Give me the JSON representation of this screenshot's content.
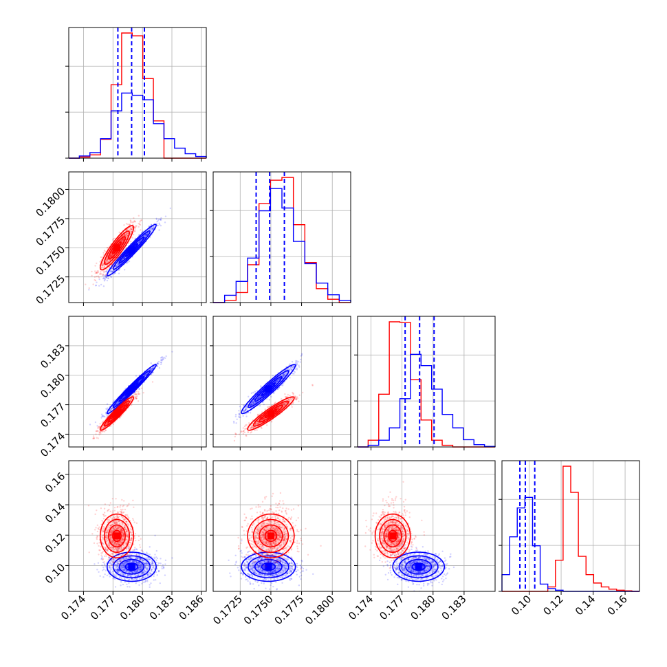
{
  "chart_data": {
    "type": "corner",
    "description_labels": "No titles or axis labels printed; only tick labels.",
    "colors": {
      "red": "#ff0000",
      "blue": "#0000ff",
      "grid": "#b0b0b0"
    },
    "grid": true,
    "params": [
      {
        "range": [
          0.1725,
          0.1865
        ],
        "ticks": [
          "0.174",
          "0.177",
          "0.180",
          "0.183",
          "0.186"
        ],
        "tick_values": [
          0.174,
          0.177,
          0.18,
          0.183,
          0.186
        ]
      },
      {
        "range": [
          0.1703,
          0.1815
        ],
        "ticks": [
          "0.1725",
          "0.1750",
          "0.1775",
          "0.1800"
        ],
        "tick_values": [
          0.1725,
          0.175,
          0.1775,
          0.18
        ]
      },
      {
        "range": [
          0.1727,
          0.186
        ],
        "ticks": [
          "0.174",
          "0.177",
          "0.180",
          "0.183"
        ],
        "tick_values": [
          0.174,
          0.177,
          0.18,
          0.183
        ]
      },
      {
        "range": [
          0.083,
          0.169
        ],
        "ticks": [
          "0.10",
          "0.12",
          "0.14",
          "0.16"
        ],
        "tick_values": [
          0.1,
          0.12,
          0.14,
          0.16
        ]
      }
    ],
    "series": [
      {
        "color": "red",
        "means": [
          0.1774,
          0.175,
          0.1761,
          0.1195
        ],
        "sds": [
          0.00085,
          0.00095,
          0.00085,
          0.0072
        ],
        "histograms": [
          [
            0,
            2,
            6,
            34,
            132,
            225,
            220,
            143,
            67,
            0,
            0,
            0,
            0
          ],
          [
            0,
            4,
            18,
            68,
            178,
            220,
            225,
            140,
            72,
            25,
            6,
            0
          ],
          [
            0,
            12,
            94,
            223,
            222,
            120,
            48,
            12,
            3,
            0,
            0,
            0,
            0
          ],
          [
            0,
            0,
            0,
            0,
            0,
            0,
            8,
            56,
            225,
            178,
            63,
            30,
            15,
            8,
            4,
            2,
            1,
            0
          ]
        ]
      },
      {
        "color": "blue",
        "means": [
          0.1789,
          0.1748,
          0.1786,
          0.0992
        ],
        "sds": [
          0.00125,
          0.0011,
          0.00125,
          0.0048
        ],
        "histograms": [
          [
            0,
            4,
            10,
            35,
            85,
            117,
            113,
            105,
            62,
            35,
            18,
            8,
            3
          ],
          [
            0,
            13,
            38,
            80,
            165,
            205,
            170,
            110,
            70,
            35,
            14,
            4
          ],
          [
            0,
            3,
            12,
            34,
            86,
            165,
            145,
            103,
            58,
            34,
            13,
            4,
            1
          ],
          [
            30,
            98,
            150,
            169,
            82,
            13,
            5,
            2,
            0,
            0,
            0,
            0,
            0,
            0,
            0,
            0,
            0,
            0
          ]
        ]
      }
    ],
    "quantile_lines": {
      "color": "blue",
      "style": "dashed",
      "values": [
        [
          0.1775,
          0.1789,
          0.1802
        ],
        [
          0.1738,
          0.1749,
          0.1761
        ],
        [
          0.1773,
          0.1787,
          0.1801
        ],
        [
          0.0942,
          0.0976,
          0.1035
        ]
      ]
    },
    "correlations": {
      "red": {
        "0-1": 0.9,
        "0-2": 0.95,
        "1-2": 0.93,
        "0-3": 0.0,
        "1-3": 0.0,
        "2-3": 0.0
      },
      "blue": {
        "0-1": 0.97,
        "0-2": 0.98,
        "1-2": 0.96,
        "0-3": 0.0,
        "1-3": 0.0,
        "2-3": 0.0
      }
    },
    "contour_sigma_levels": [
      0.5,
      1.0,
      1.5,
      2.0
    ]
  }
}
